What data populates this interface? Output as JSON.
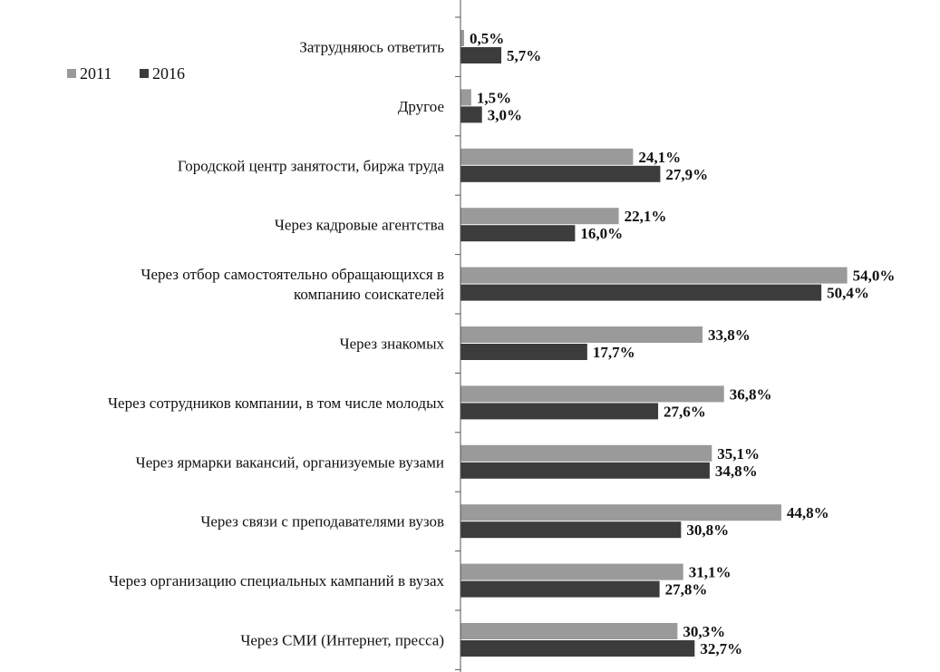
{
  "chart_data": {
    "type": "bar",
    "orientation": "horizontal",
    "categories": [
      [
        "Затрудняюсь ответить"
      ],
      [
        "Другое"
      ],
      [
        "Городской центр занятости, биржа труда"
      ],
      [
        "Через кадровые агентства"
      ],
      [
        "Через отбор самостоятельно обращающихся в",
        "компанию соискателей"
      ],
      [
        "Через знакомых"
      ],
      [
        "Через сотрудников компании, в том числе молодых"
      ],
      [
        "Через ярмарки вакансий, организуемые вузами"
      ],
      [
        "Через связи с преподавателями вузов"
      ],
      [
        "Через организацию специальных кампаний в вузах"
      ],
      [
        "Через СМИ (Интернет, пресса)"
      ]
    ],
    "series": [
      {
        "name": "2011",
        "color": "#9a9a9a",
        "values": [
          0.5,
          1.5,
          24.1,
          22.1,
          54.0,
          33.8,
          36.8,
          35.1,
          44.8,
          31.1,
          30.3
        ],
        "labels": [
          "0,5%",
          "1,5%",
          "24,1%",
          "22,1%",
          "54,0%",
          "33,8%",
          "36,8%",
          "35,1%",
          "44,8%",
          "31,1%",
          "30,3%"
        ]
      },
      {
        "name": "2016",
        "color": "#3c3c3c",
        "values": [
          5.7,
          3.0,
          27.9,
          16.0,
          50.4,
          17.7,
          27.6,
          34.8,
          30.8,
          27.8,
          32.7
        ],
        "labels": [
          "5,7%",
          "3,0%",
          "27,9%",
          "16,0%",
          "50,4%",
          "17,7%",
          "27,6%",
          "34,8%",
          "30,8%",
          "27,8%",
          "32,7%"
        ]
      }
    ],
    "legend": {
      "placement": "top-left"
    },
    "grid": false
  }
}
